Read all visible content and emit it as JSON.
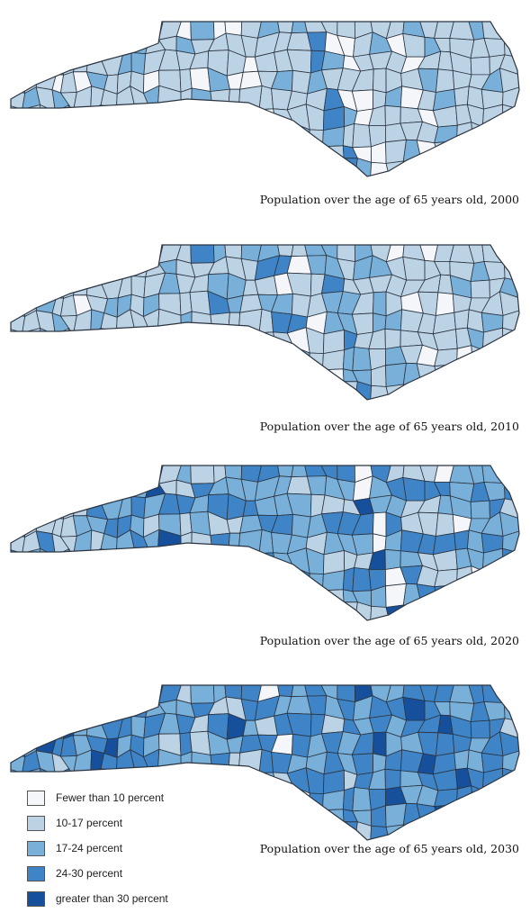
{
  "palette": {
    "lt10": "#f4f6fa",
    "p10_17": "#bcd3e6",
    "p17_24": "#78b0da",
    "p24_30": "#3f84c6",
    "gt30": "#16509c",
    "border": "#2b3440"
  },
  "maps": [
    {
      "caption": "Population over the age of 65 years old, 2000",
      "counts": {
        "lt10": 12,
        "p10_17": 70,
        "p17_24": 16,
        "p24_30": 2,
        "gt30": 0
      }
    },
    {
      "caption": "Population over the age of 65 years old, 2010",
      "counts": {
        "lt10": 6,
        "p10_17": 66,
        "p17_24": 24,
        "p24_30": 4,
        "gt30": 0
      }
    },
    {
      "caption": "Population over the age of 65 years old, 2020",
      "counts": {
        "lt10": 3,
        "p10_17": 28,
        "p17_24": 42,
        "p24_30": 25,
        "gt30": 2
      }
    },
    {
      "caption": "Population over the age of 65 years old, 2030",
      "counts": {
        "lt10": 1,
        "p10_17": 10,
        "p17_24": 34,
        "p24_30": 47,
        "gt30": 8
      }
    }
  ],
  "legend": [
    {
      "key": "lt10",
      "label": "Fewer than 10 percent"
    },
    {
      "key": "p10_17",
      "label": "10-17 percent"
    },
    {
      "key": "p17_24",
      "label": "17-24 percent"
    },
    {
      "key": "p24_30",
      "label": "24-30 percent"
    },
    {
      "key": "gt30",
      "label": "greater than 30 percent"
    }
  ]
}
